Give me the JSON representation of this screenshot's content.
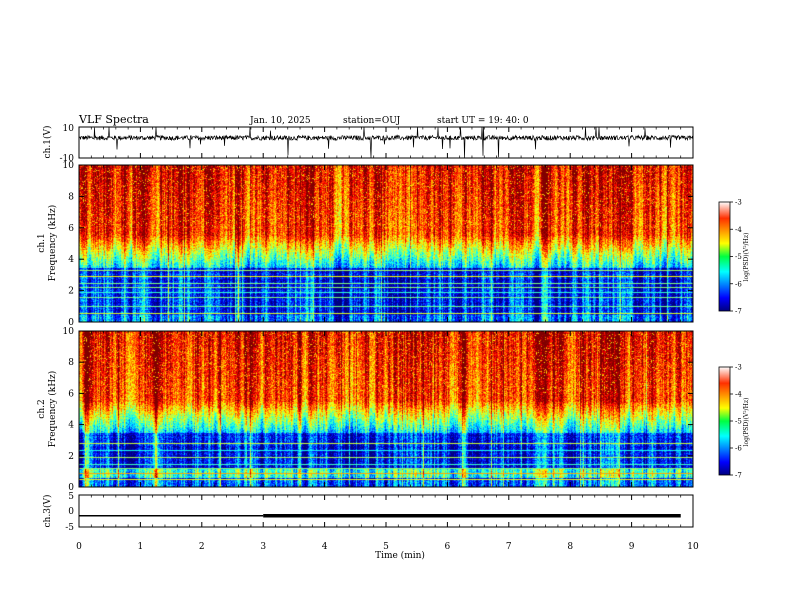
{
  "header": {
    "title": "VLF Spectra",
    "date": "Jan. 10, 2025",
    "station": "station=OUJ",
    "start_ut": "start UT =  19: 40: 0"
  },
  "chart_data": [
    {
      "type": "line",
      "ylabel": "ch.1(V)",
      "ylim": [
        -10,
        10
      ],
      "yticks": [
        "10",
        "-10"
      ],
      "baseline": 3,
      "description_values": {
        "typical_range": [
          0,
          6
        ],
        "spike_max": 10,
        "spike_min": -10
      }
    },
    {
      "type": "heatmap",
      "ylabel_line1": "ch.1",
      "ylabel_line2": "Frequency (kHz)",
      "ylim": [
        0,
        10
      ],
      "yticks": [
        "0",
        "2",
        "4",
        "6",
        "8",
        "10"
      ],
      "colorbar": {
        "label": "log(PSD)(V²/Hz)",
        "range": [
          -7,
          -3
        ],
        "ticks": [
          "-3",
          "-4",
          "-5",
          "-6",
          "-7"
        ]
      }
    },
    {
      "type": "heatmap",
      "ylabel_line1": "ch.2",
      "ylabel_line2": "Frequency (kHz)",
      "ylim": [
        0,
        10
      ],
      "yticks": [
        "0",
        "2",
        "4",
        "6",
        "8",
        "10"
      ],
      "colorbar": {
        "label": "log(PSD)(V²/Hz)",
        "range": [
          -7,
          -3
        ],
        "ticks": [
          "-3",
          "-4",
          "-5",
          "-6",
          "-7"
        ]
      }
    },
    {
      "type": "line",
      "ylabel": "ch.3(V)",
      "ylim": [
        -5,
        5
      ],
      "yticks": [
        "5",
        "0",
        "-5"
      ],
      "segments": [
        {
          "x": [
            0,
            3
          ],
          "y": -1.5,
          "weight": "thin"
        },
        {
          "x": [
            3,
            9.8
          ],
          "y": -1.5,
          "weight": "thick"
        }
      ]
    }
  ],
  "x_axis": {
    "label": "Time (min)",
    "xlim": [
      0,
      10
    ],
    "ticks": [
      "0",
      "1",
      "2",
      "3",
      "4",
      "5",
      "6",
      "7",
      "8",
      "9",
      "10"
    ]
  },
  "colors": {
    "jet_low": "#00007f",
    "jet_high": "#ff3000"
  }
}
